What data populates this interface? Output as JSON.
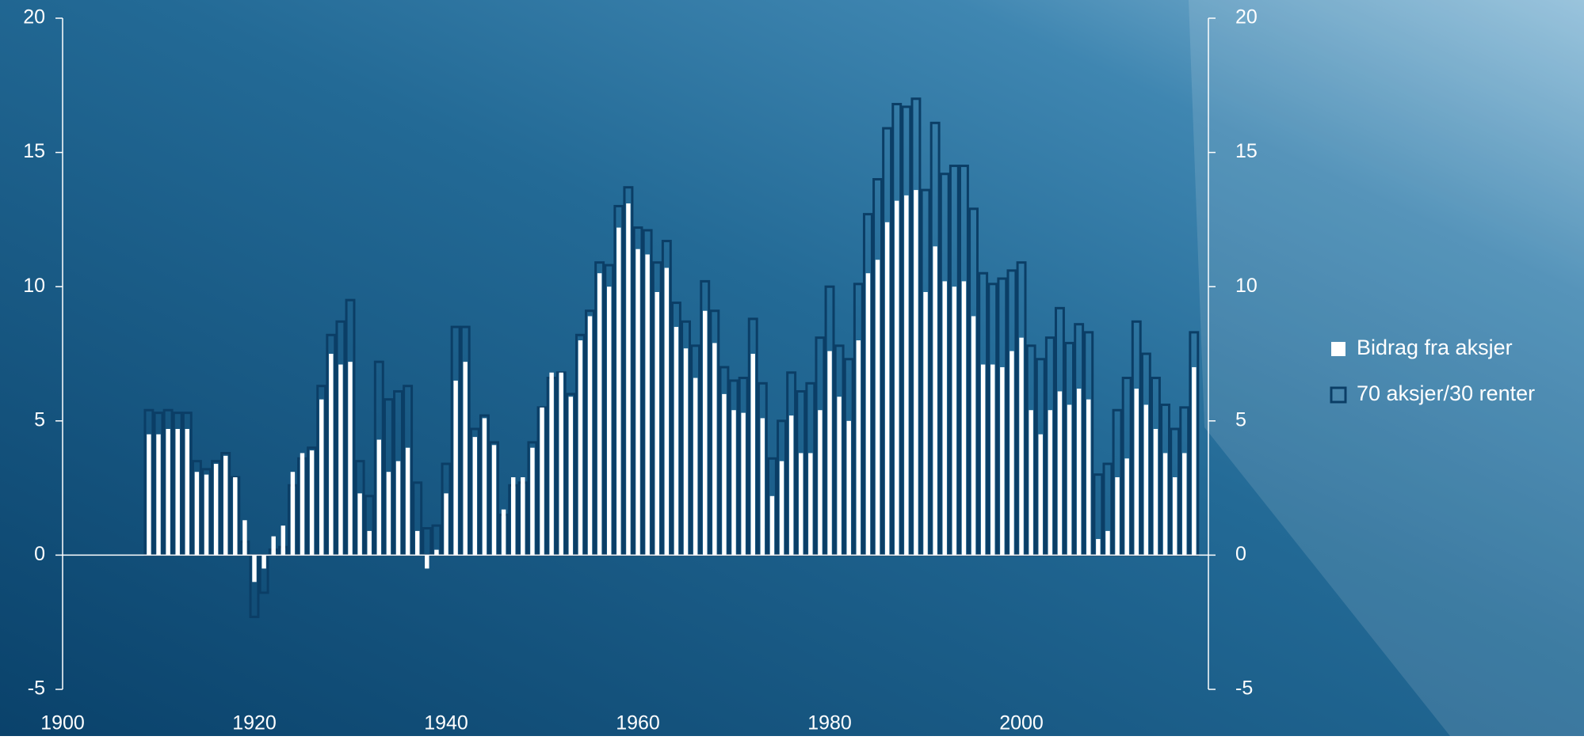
{
  "chart_data": {
    "type": "bar",
    "x": [
      1909,
      1910,
      1911,
      1912,
      1913,
      1914,
      1915,
      1916,
      1917,
      1918,
      1919,
      1920,
      1921,
      1922,
      1923,
      1924,
      1925,
      1926,
      1927,
      1928,
      1929,
      1930,
      1931,
      1932,
      1933,
      1934,
      1935,
      1936,
      1937,
      1938,
      1939,
      1940,
      1941,
      1942,
      1943,
      1944,
      1945,
      1946,
      1947,
      1948,
      1949,
      1950,
      1951,
      1952,
      1953,
      1954,
      1955,
      1956,
      1957,
      1958,
      1959,
      1960,
      1961,
      1962,
      1963,
      1964,
      1965,
      1966,
      1967,
      1968,
      1969,
      1970,
      1971,
      1972,
      1973,
      1974,
      1975,
      1976,
      1977,
      1978,
      1979,
      1980,
      1981,
      1982,
      1983,
      1984,
      1985,
      1986,
      1987,
      1988,
      1989,
      1990,
      1991,
      1992,
      1993,
      1994,
      1995,
      1996,
      1997,
      1998,
      1999,
      2000,
      2001,
      2002,
      2003,
      2004,
      2005,
      2006,
      2007,
      2008,
      2009,
      2010,
      2011,
      2012,
      2013,
      2014,
      2015,
      2016,
      2017,
      2018
    ],
    "series": [
      {
        "name": "70 aksjer/30 renter",
        "color": "#0b3e66",
        "style": "outline",
        "values": [
          5.4,
          5.3,
          5.4,
          5.3,
          5.3,
          3.5,
          3.2,
          3.5,
          3.8,
          2.9,
          0.5,
          -2.3,
          -1.4,
          0.2,
          0.3,
          2.6,
          3.6,
          4.0,
          6.3,
          8.2,
          8.7,
          9.5,
          3.5,
          2.2,
          7.2,
          5.8,
          6.1,
          6.3,
          2.7,
          1.0,
          1.1,
          3.4,
          8.5,
          8.5,
          4.7,
          5.2,
          4.2,
          1.5,
          2.6,
          2.7,
          4.2,
          5.5,
          6.6,
          6.8,
          6.0,
          8.2,
          9.1,
          10.9,
          10.8,
          13.0,
          13.7,
          12.2,
          12.1,
          10.9,
          11.7,
          9.4,
          8.7,
          7.8,
          10.2,
          9.1,
          7.0,
          6.5,
          6.6,
          8.8,
          6.4,
          3.6,
          5.0,
          6.8,
          6.1,
          6.4,
          8.1,
          10.0,
          7.8,
          7.3,
          10.1,
          12.7,
          14.0,
          15.9,
          16.8,
          16.7,
          17.0,
          13.6,
          16.1,
          14.2,
          14.5,
          14.5,
          12.9,
          10.5,
          10.1,
          10.3,
          10.6,
          10.9,
          7.8,
          7.3,
          8.1,
          9.2,
          7.9,
          8.6,
          8.3,
          3.0,
          3.4,
          5.4,
          6.6,
          8.7,
          7.5,
          6.6,
          5.6,
          4.7,
          5.5,
          8.3
        ]
      },
      {
        "name": "Bidrag fra aksjer",
        "color": "#ffffff",
        "style": "fill",
        "values": [
          4.5,
          4.5,
          4.7,
          4.7,
          4.7,
          3.1,
          3.0,
          3.4,
          3.7,
          2.9,
          1.3,
          -1.0,
          -0.5,
          0.7,
          1.1,
          3.1,
          3.8,
          3.9,
          5.8,
          7.5,
          7.1,
          7.2,
          2.3,
          0.9,
          4.3,
          3.1,
          3.5,
          4.0,
          0.9,
          -0.5,
          0.2,
          2.3,
          6.5,
          7.2,
          4.4,
          5.1,
          4.1,
          1.7,
          2.9,
          2.9,
          4.0,
          5.5,
          6.8,
          6.8,
          5.9,
          8.0,
          8.9,
          10.5,
          10.0,
          12.2,
          13.1,
          11.4,
          11.2,
          9.8,
          10.7,
          8.5,
          7.7,
          6.6,
          9.1,
          7.9,
          6.0,
          5.4,
          5.3,
          7.5,
          5.1,
          2.2,
          3.5,
          5.2,
          3.8,
          3.8,
          5.4,
          7.6,
          5.9,
          5.0,
          8.0,
          10.5,
          11.0,
          12.4,
          13.2,
          13.4,
          13.6,
          9.8,
          11.5,
          10.2,
          10.0,
          10.2,
          8.9,
          7.1,
          7.1,
          7.0,
          7.6,
          8.1,
          5.4,
          4.5,
          5.4,
          6.1,
          5.6,
          6.2,
          5.8,
          0.6,
          0.9,
          2.9,
          3.6,
          6.2,
          5.6,
          4.7,
          3.8,
          2.9,
          3.8,
          7.0
        ]
      }
    ],
    "xlim": [
      1900,
      2019.5
    ],
    "xticks": [
      1900,
      1920,
      1940,
      1960,
      1980,
      2000
    ],
    "ylim": [
      -5,
      20
    ],
    "yticks": [
      -5,
      0,
      5,
      10,
      15,
      20
    ],
    "y2lim": [
      -5,
      20
    ],
    "y2ticks": [
      -5,
      0,
      5,
      10,
      15,
      20
    ],
    "legend": "right"
  }
}
